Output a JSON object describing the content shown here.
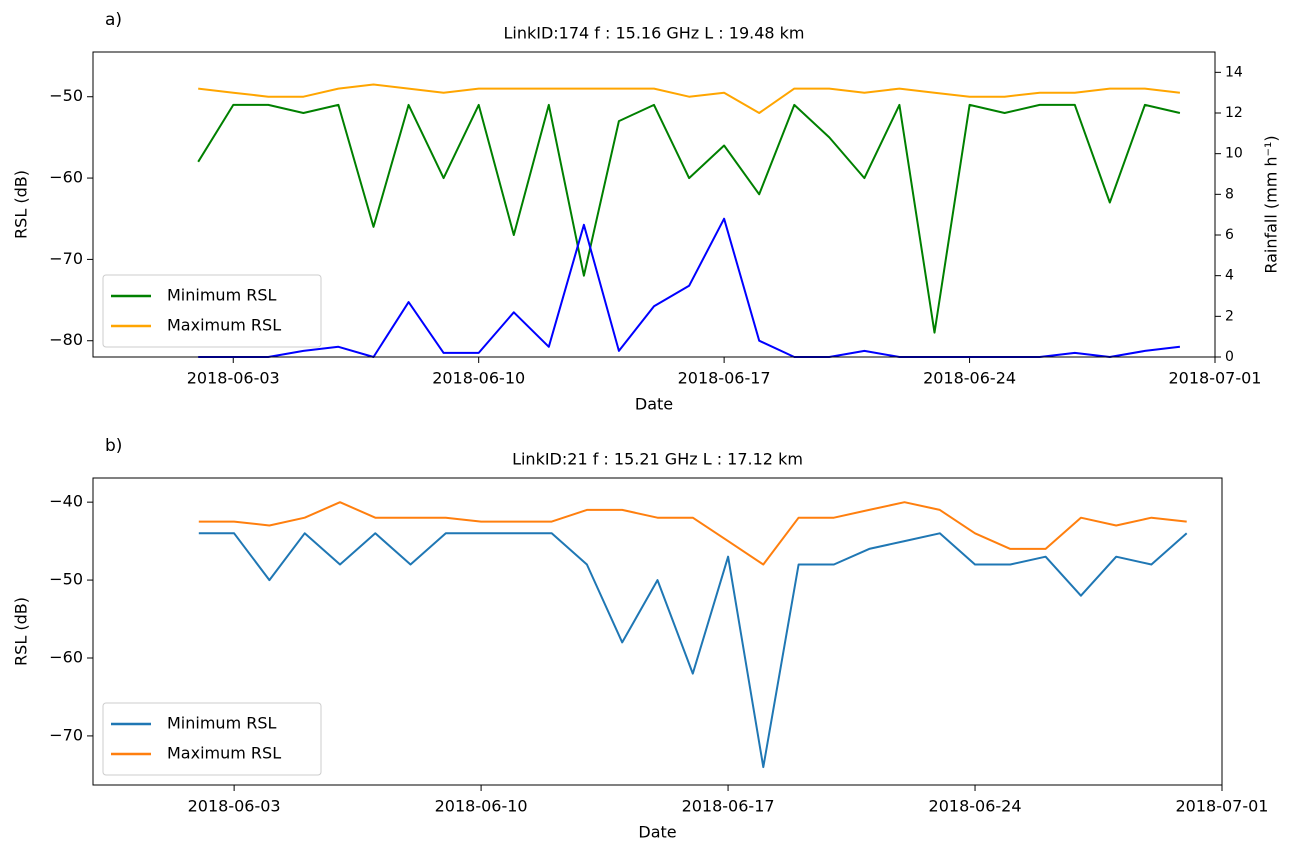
{
  "chart_data": [
    {
      "type": "line",
      "label": "a)",
      "title": "LinkID:174 f : 15.16 GHz  L : 19.48 km",
      "xlabel": "Date",
      "ylabel": "RSL (dB)",
      "y2label": "Rainfall (mm h⁻¹)",
      "x": [
        "2018-06-02",
        "2018-06-03",
        "2018-06-04",
        "2018-06-05",
        "2018-06-06",
        "2018-06-07",
        "2018-06-08",
        "2018-06-09",
        "2018-06-10",
        "2018-06-11",
        "2018-06-12",
        "2018-06-13",
        "2018-06-14",
        "2018-06-15",
        "2018-06-16",
        "2018-06-17",
        "2018-06-18",
        "2018-06-19",
        "2018-06-20",
        "2018-06-21",
        "2018-06-22",
        "2018-06-23",
        "2018-06-24",
        "2018-06-25",
        "2018-06-26",
        "2018-06-27",
        "2018-06-28",
        "2018-06-29",
        "2018-06-30"
      ],
      "series": [
        {
          "name": "Minimum RSL",
          "color": "#008000",
          "values": [
            -58,
            -51,
            -51,
            -52,
            -51,
            -66,
            -51,
            -60,
            -51,
            -67,
            -51,
            -72,
            -53,
            -51,
            -60,
            -56,
            -62,
            -51,
            -55,
            -60,
            -51,
            -79,
            -51,
            -52,
            -51,
            -51,
            -63,
            -51,
            -52
          ]
        },
        {
          "name": "Maximum RSL",
          "color": "#ffa500",
          "values": [
            -49,
            -49.5,
            -50,
            -50,
            -49,
            -48.5,
            -49,
            -49.5,
            -49,
            -49,
            -49,
            -49,
            -49,
            -49,
            -50,
            -49.5,
            -52,
            -49,
            -49,
            -49.5,
            -49,
            -49.5,
            -50,
            -50,
            -49.5,
            -49.5,
            -49,
            -49,
            -49.5
          ]
        },
        {
          "color": "#0000ff",
          "axis": "y2",
          "values": [
            0,
            0,
            0,
            0.3,
            0.5,
            0,
            2.7,
            0.2,
            0.2,
            2.2,
            0.5,
            6.5,
            0.3,
            2.5,
            3.5,
            6.8,
            0.8,
            0,
            0,
            0.3,
            0,
            0,
            0,
            0,
            0,
            0.2,
            0,
            0.3,
            0.5
          ]
        }
      ],
      "xlim": [
        "2018-05-30",
        "2018-07-01"
      ],
      "xticks": [
        "2018-06-03",
        "2018-06-10",
        "2018-06-17",
        "2018-06-24",
        "2018-07-01"
      ],
      "ylim": [
        -82,
        -44.5
      ],
      "yticks": [
        {
          "value": -80,
          "label": "−80"
        },
        {
          "value": -70,
          "label": "−70"
        },
        {
          "value": -60,
          "label": "−60"
        },
        {
          "value": -50,
          "label": "−50"
        }
      ],
      "y2lim": [
        0,
        15
      ],
      "y2ticks": [
        0,
        2,
        4,
        6,
        8,
        10,
        12,
        14
      ],
      "legend": "lower left"
    },
    {
      "type": "line",
      "label": "b)",
      "title": "LinkID:21 f : 15.21 GHz  L : 17.12 km",
      "xlabel": "Date",
      "ylabel": "RSL (dB)",
      "x": [
        "2018-06-02",
        "2018-06-03",
        "2018-06-04",
        "2018-06-05",
        "2018-06-06",
        "2018-06-07",
        "2018-06-08",
        "2018-06-09",
        "2018-06-10",
        "2018-06-11",
        "2018-06-12",
        "2018-06-13",
        "2018-06-14",
        "2018-06-15",
        "2018-06-16",
        "2018-06-17",
        "2018-06-18",
        "2018-06-19",
        "2018-06-20",
        "2018-06-21",
        "2018-06-22",
        "2018-06-23",
        "2018-06-24",
        "2018-06-25",
        "2018-06-26",
        "2018-06-27",
        "2018-06-28",
        "2018-06-29",
        "2018-06-30"
      ],
      "series": [
        {
          "name": "Minimum RSL",
          "color": "#1f77b4",
          "values": [
            -44,
            -44,
            -50,
            -44,
            -48,
            -44,
            -48,
            -44,
            -44,
            -44,
            -44,
            -48,
            -58,
            -50,
            -62,
            -47,
            -74,
            -48,
            -48,
            -46,
            -45,
            -44,
            -48,
            -48,
            -47,
            -52,
            -47,
            -48,
            -44
          ]
        },
        {
          "name": "Maximum RSL",
          "color": "#ff7f0e",
          "values": [
            -42.5,
            -42.5,
            -43,
            -42,
            -40,
            -42,
            -42,
            -42,
            -42.5,
            -42.5,
            -42.5,
            -41,
            -41,
            -42,
            -42,
            -45,
            -48,
            -42,
            -42,
            -41,
            -40,
            -41,
            -44,
            -46,
            -46,
            -42,
            -43,
            -42,
            -42.5
          ]
        }
      ],
      "xlim": [
        "2018-05-30",
        "2018-07-01"
      ],
      "xticks": [
        "2018-06-03",
        "2018-06-10",
        "2018-06-17",
        "2018-06-24",
        "2018-07-01"
      ],
      "ylim": [
        -76.3,
        -36.9
      ],
      "yticks": [
        {
          "value": -70,
          "label": "−70"
        },
        {
          "value": -60,
          "label": "−60"
        },
        {
          "value": -50,
          "label": "−50"
        },
        {
          "value": -40,
          "label": "−40"
        }
      ],
      "legend": "lower left"
    }
  ]
}
